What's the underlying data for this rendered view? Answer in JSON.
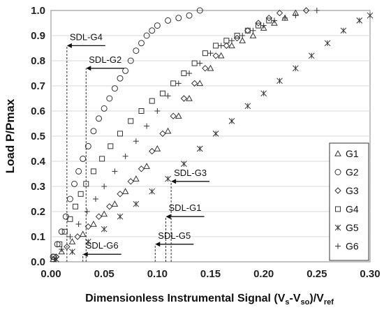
{
  "chart_data": {
    "type": "scatter",
    "xlabel": {
      "main": "Dimensionless Instrumental  Signal (V",
      "s1": "s",
      "mid1": "-V",
      "s2": "so",
      "mid2": ")/V",
      "s3": "ref"
    },
    "ylabel": "Load P/Pmax",
    "xlim": [
      0,
      0.3
    ],
    "ylim": [
      0,
      1.0
    ],
    "x_ticks": [
      "0.00",
      "0.05",
      "0.10",
      "0.15",
      "0.20",
      "0.25",
      "0.30"
    ],
    "y_ticks": [
      "0.0",
      "0.1",
      "0.2",
      "0.3",
      "0.4",
      "0.5",
      "0.6",
      "0.7",
      "0.8",
      "0.9",
      "1.0"
    ],
    "grid": "horizontal",
    "legend_position": "right-bottom",
    "series": [
      {
        "name": "G1",
        "marker": "triangle",
        "points": [
          [
            0.002,
            0.01
          ],
          [
            0.01,
            0.04
          ],
          [
            0.02,
            0.08
          ],
          [
            0.03,
            0.11
          ],
          [
            0.04,
            0.15
          ],
          [
            0.05,
            0.19
          ],
          [
            0.06,
            0.23
          ],
          [
            0.07,
            0.28
          ],
          [
            0.08,
            0.33
          ],
          [
            0.09,
            0.38
          ],
          [
            0.1,
            0.45
          ],
          [
            0.11,
            0.52
          ],
          [
            0.12,
            0.58
          ],
          [
            0.13,
            0.65
          ],
          [
            0.14,
            0.71
          ],
          [
            0.15,
            0.77
          ],
          [
            0.16,
            0.82
          ],
          [
            0.17,
            0.86
          ],
          [
            0.18,
            0.88
          ],
          [
            0.19,
            0.9
          ],
          [
            0.2,
            0.93
          ],
          [
            0.21,
            0.95
          ],
          [
            0.22,
            0.97
          ],
          [
            0.23,
            0.99
          ]
        ]
      },
      {
        "name": "G2",
        "marker": "circle",
        "points": [
          [
            0.002,
            0.02
          ],
          [
            0.006,
            0.07
          ],
          [
            0.01,
            0.12
          ],
          [
            0.014,
            0.18
          ],
          [
            0.018,
            0.25
          ],
          [
            0.022,
            0.31
          ],
          [
            0.026,
            0.36
          ],
          [
            0.03,
            0.41
          ],
          [
            0.035,
            0.46
          ],
          [
            0.04,
            0.52
          ],
          [
            0.045,
            0.57
          ],
          [
            0.05,
            0.61
          ],
          [
            0.055,
            0.65
          ],
          [
            0.06,
            0.69
          ],
          [
            0.065,
            0.73
          ],
          [
            0.07,
            0.76
          ],
          [
            0.075,
            0.8
          ],
          [
            0.08,
            0.84
          ],
          [
            0.085,
            0.87
          ],
          [
            0.09,
            0.9
          ],
          [
            0.095,
            0.92
          ],
          [
            0.1,
            0.94
          ],
          [
            0.11,
            0.96
          ],
          [
            0.12,
            0.97
          ],
          [
            0.13,
            0.98
          ],
          [
            0.14,
            1.0
          ]
        ]
      },
      {
        "name": "G3",
        "marker": "diamond",
        "points": [
          [
            0.005,
            0.02
          ],
          [
            0.015,
            0.06
          ],
          [
            0.025,
            0.1
          ],
          [
            0.035,
            0.14
          ],
          [
            0.045,
            0.18
          ],
          [
            0.055,
            0.22
          ],
          [
            0.065,
            0.27
          ],
          [
            0.075,
            0.32
          ],
          [
            0.085,
            0.37
          ],
          [
            0.095,
            0.44
          ],
          [
            0.105,
            0.51
          ],
          [
            0.115,
            0.58
          ],
          [
            0.125,
            0.65
          ],
          [
            0.135,
            0.71
          ],
          [
            0.145,
            0.77
          ],
          [
            0.155,
            0.82
          ],
          [
            0.165,
            0.86
          ],
          [
            0.175,
            0.89
          ],
          [
            0.185,
            0.92
          ],
          [
            0.195,
            0.95
          ],
          [
            0.205,
            0.97
          ],
          [
            0.215,
            0.99
          ],
          [
            0.24,
            1.0
          ]
        ]
      },
      {
        "name": "G4",
        "marker": "square",
        "points": [
          [
            0.003,
            0.02
          ],
          [
            0.008,
            0.07
          ],
          [
            0.013,
            0.12
          ],
          [
            0.018,
            0.17
          ],
          [
            0.023,
            0.22
          ],
          [
            0.028,
            0.27
          ],
          [
            0.033,
            0.31
          ],
          [
            0.04,
            0.36
          ],
          [
            0.048,
            0.41
          ],
          [
            0.056,
            0.46
          ],
          [
            0.065,
            0.51
          ],
          [
            0.075,
            0.56
          ],
          [
            0.085,
            0.6
          ],
          [
            0.095,
            0.64
          ],
          [
            0.105,
            0.67
          ],
          [
            0.115,
            0.71
          ],
          [
            0.125,
            0.75
          ],
          [
            0.135,
            0.79
          ],
          [
            0.145,
            0.83
          ],
          [
            0.155,
            0.86
          ],
          [
            0.165,
            0.88
          ],
          [
            0.175,
            0.9
          ],
          [
            0.185,
            0.92
          ],
          [
            0.195,
            0.94
          ],
          [
            0.205,
            0.96
          ]
        ]
      },
      {
        "name": "G5",
        "marker": "asterisk",
        "points": [
          [
            0.005,
            0.01
          ],
          [
            0.02,
            0.04
          ],
          [
            0.035,
            0.08
          ],
          [
            0.05,
            0.13
          ],
          [
            0.065,
            0.18
          ],
          [
            0.08,
            0.23
          ],
          [
            0.095,
            0.28
          ],
          [
            0.11,
            0.33
          ],
          [
            0.125,
            0.39
          ],
          [
            0.14,
            0.45
          ],
          [
            0.155,
            0.51
          ],
          [
            0.17,
            0.56
          ],
          [
            0.185,
            0.62
          ],
          [
            0.2,
            0.67
          ],
          [
            0.215,
            0.72
          ],
          [
            0.23,
            0.77
          ],
          [
            0.245,
            0.82
          ],
          [
            0.26,
            0.87
          ],
          [
            0.275,
            0.92
          ],
          [
            0.29,
            0.96
          ],
          [
            0.3,
            0.98
          ]
        ]
      },
      {
        "name": "G6",
        "marker": "plus",
        "points": [
          [
            0.003,
            0.01
          ],
          [
            0.01,
            0.05
          ],
          [
            0.018,
            0.1
          ],
          [
            0.026,
            0.15
          ],
          [
            0.034,
            0.2
          ],
          [
            0.042,
            0.25
          ],
          [
            0.05,
            0.3
          ],
          [
            0.06,
            0.36
          ],
          [
            0.07,
            0.42
          ],
          [
            0.08,
            0.48
          ],
          [
            0.09,
            0.54
          ],
          [
            0.1,
            0.6
          ],
          [
            0.11,
            0.66
          ],
          [
            0.12,
            0.71
          ],
          [
            0.13,
            0.75
          ],
          [
            0.14,
            0.79
          ],
          [
            0.15,
            0.83
          ],
          [
            0.16,
            0.86
          ],
          [
            0.17,
            0.88
          ],
          [
            0.18,
            0.9
          ],
          [
            0.19,
            0.92
          ],
          [
            0.2,
            0.94
          ],
          [
            0.21,
            0.96
          ],
          [
            0.22,
            0.97
          ],
          [
            0.23,
            0.98
          ],
          [
            0.25,
            1.0
          ]
        ]
      }
    ],
    "annotations": [
      {
        "label": "SDL-G4",
        "x": 0.015,
        "y": 0.86
      },
      {
        "label": "SDL-G2",
        "x": 0.033,
        "y": 0.77
      },
      {
        "label": "SDL-G3",
        "x": 0.113,
        "y": 0.32
      },
      {
        "label": "SDL-G1",
        "x": 0.108,
        "y": 0.18
      },
      {
        "label": "SDL-G5",
        "x": 0.098,
        "y": 0.07
      },
      {
        "label": "SDL-G6",
        "x": 0.03,
        "y": 0.03
      }
    ]
  }
}
